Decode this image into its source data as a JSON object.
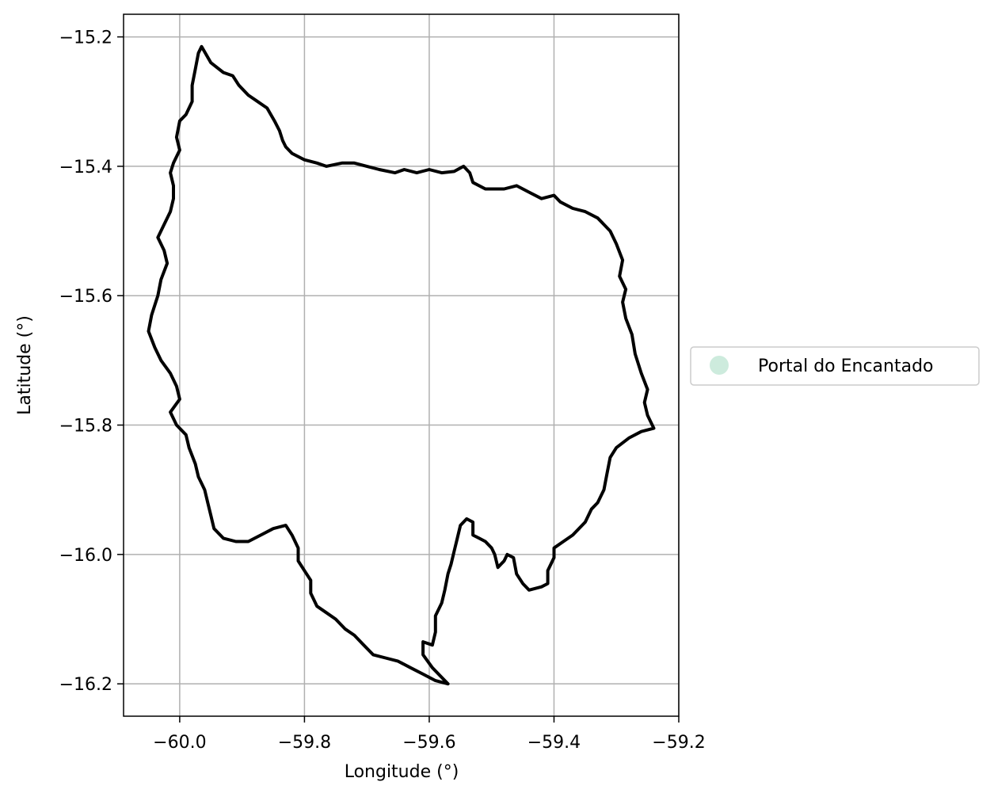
{
  "chart_data": {
    "type": "map",
    "xlabel": "Longitude (°)",
    "ylabel": "Latitude (°)",
    "xlim": [
      -60.09,
      -59.2
    ],
    "ylim": [
      -16.25,
      -15.165
    ],
    "xticks": [
      -60.0,
      -59.8,
      -59.6,
      -59.4,
      -59.2
    ],
    "xtick_labels": [
      "−60.0",
      "−59.8",
      "−59.6",
      "−59.4",
      "−59.2"
    ],
    "yticks": [
      -15.2,
      -15.4,
      -15.6,
      -15.8,
      -16.0,
      -16.2
    ],
    "ytick_labels": [
      "−15.2",
      "−15.4",
      "−15.6",
      "−15.8",
      "−16.0",
      "−16.2"
    ],
    "grid": true,
    "legend": {
      "placement": "outside-right",
      "entries": [
        {
          "label": "Portal do Encantado",
          "color": "#cdebdd"
        }
      ]
    },
    "boundary_color": "#000000",
    "boundary": [
      [
        -59.965,
        -15.215
      ],
      [
        -59.95,
        -15.24
      ],
      [
        -59.93,
        -15.255
      ],
      [
        -59.915,
        -15.26
      ],
      [
        -59.905,
        -15.275
      ],
      [
        -59.89,
        -15.29
      ],
      [
        -59.875,
        -15.3
      ],
      [
        -59.86,
        -15.31
      ],
      [
        -59.848,
        -15.33
      ],
      [
        -59.84,
        -15.345
      ],
      [
        -59.835,
        -15.36
      ],
      [
        -59.83,
        -15.37
      ],
      [
        -59.82,
        -15.38
      ],
      [
        -59.8,
        -15.39
      ],
      [
        -59.78,
        -15.395
      ],
      [
        -59.765,
        -15.4
      ],
      [
        -59.74,
        -15.395
      ],
      [
        -59.72,
        -15.395
      ],
      [
        -59.7,
        -15.4
      ],
      [
        -59.68,
        -15.405
      ],
      [
        -59.655,
        -15.41
      ],
      [
        -59.64,
        -15.405
      ],
      [
        -59.62,
        -15.41
      ],
      [
        -59.6,
        -15.405
      ],
      [
        -59.58,
        -15.41
      ],
      [
        -59.56,
        -15.408
      ],
      [
        -59.545,
        -15.4
      ],
      [
        -59.535,
        -15.41
      ],
      [
        -59.53,
        -15.425
      ],
      [
        -59.51,
        -15.435
      ],
      [
        -59.48,
        -15.435
      ],
      [
        -59.46,
        -15.43
      ],
      [
        -59.44,
        -15.44
      ],
      [
        -59.42,
        -15.45
      ],
      [
        -59.4,
        -15.445
      ],
      [
        -59.39,
        -15.455
      ],
      [
        -59.37,
        -15.465
      ],
      [
        -59.35,
        -15.47
      ],
      [
        -59.33,
        -15.48
      ],
      [
        -59.31,
        -15.5
      ],
      [
        -59.3,
        -15.52
      ],
      [
        -59.29,
        -15.545
      ],
      [
        -59.295,
        -15.57
      ],
      [
        -59.285,
        -15.59
      ],
      [
        -59.29,
        -15.61
      ],
      [
        -59.285,
        -15.635
      ],
      [
        -59.275,
        -15.66
      ],
      [
        -59.27,
        -15.69
      ],
      [
        -59.26,
        -15.72
      ],
      [
        -59.25,
        -15.745
      ],
      [
        -59.255,
        -15.765
      ],
      [
        -59.25,
        -15.785
      ],
      [
        -59.24,
        -15.805
      ],
      [
        -59.26,
        -15.81
      ],
      [
        -59.28,
        -15.82
      ],
      [
        -59.3,
        -15.835
      ],
      [
        -59.31,
        -15.85
      ],
      [
        -59.315,
        -15.875
      ],
      [
        -59.32,
        -15.9
      ],
      [
        -59.33,
        -15.92
      ],
      [
        -59.34,
        -15.93
      ],
      [
        -59.35,
        -15.95
      ],
      [
        -59.37,
        -15.97
      ],
      [
        -59.385,
        -15.98
      ],
      [
        -59.4,
        -15.99
      ],
      [
        -59.4,
        -16.005
      ],
      [
        -59.41,
        -16.025
      ],
      [
        -59.41,
        -16.045
      ],
      [
        -59.42,
        -16.05
      ],
      [
        -59.44,
        -16.055
      ],
      [
        -59.45,
        -16.045
      ],
      [
        -59.46,
        -16.03
      ],
      [
        -59.465,
        -16.005
      ],
      [
        -59.475,
        -16.0
      ],
      [
        -59.48,
        -16.01
      ],
      [
        -59.49,
        -16.02
      ],
      [
        -59.495,
        -16.0
      ],
      [
        -59.5,
        -15.99
      ],
      [
        -59.51,
        -15.98
      ],
      [
        -59.52,
        -15.975
      ],
      [
        -59.53,
        -15.97
      ],
      [
        -59.53,
        -15.95
      ],
      [
        -59.54,
        -15.945
      ],
      [
        -59.55,
        -15.955
      ],
      [
        -59.555,
        -15.975
      ],
      [
        -59.56,
        -15.995
      ],
      [
        -59.565,
        -16.015
      ],
      [
        -59.57,
        -16.03
      ],
      [
        -59.575,
        -16.055
      ],
      [
        -59.58,
        -16.075
      ],
      [
        -59.59,
        -16.095
      ],
      [
        -59.59,
        -16.12
      ],
      [
        -59.595,
        -16.14
      ],
      [
        -59.61,
        -16.135
      ],
      [
        -59.61,
        -16.155
      ],
      [
        -59.595,
        -16.175
      ],
      [
        -59.58,
        -16.19
      ],
      [
        -59.57,
        -16.2
      ],
      [
        -59.59,
        -16.195
      ],
      [
        -59.61,
        -16.185
      ],
      [
        -59.63,
        -16.175
      ],
      [
        -59.65,
        -16.165
      ],
      [
        -59.67,
        -16.16
      ],
      [
        -59.69,
        -16.155
      ],
      [
        -59.705,
        -16.14
      ],
      [
        -59.72,
        -16.125
      ],
      [
        -59.735,
        -16.115
      ],
      [
        -59.75,
        -16.1
      ],
      [
        -59.765,
        -16.09
      ],
      [
        -59.78,
        -16.08
      ],
      [
        -59.79,
        -16.06
      ],
      [
        -59.79,
        -16.04
      ],
      [
        -59.8,
        -16.025
      ],
      [
        -59.81,
        -16.01
      ],
      [
        -59.81,
        -15.99
      ],
      [
        -59.82,
        -15.97
      ],
      [
        -59.83,
        -15.955
      ],
      [
        -59.85,
        -15.96
      ],
      [
        -59.87,
        -15.97
      ],
      [
        -59.89,
        -15.98
      ],
      [
        -59.91,
        -15.98
      ],
      [
        -59.93,
        -15.975
      ],
      [
        -59.945,
        -15.96
      ],
      [
        -59.95,
        -15.94
      ],
      [
        -59.955,
        -15.92
      ],
      [
        -59.96,
        -15.9
      ],
      [
        -59.97,
        -15.88
      ],
      [
        -59.975,
        -15.86
      ],
      [
        -59.985,
        -15.835
      ],
      [
        -59.99,
        -15.815
      ],
      [
        -60.005,
        -15.8
      ],
      [
        -60.015,
        -15.78
      ],
      [
        -60.0,
        -15.76
      ],
      [
        -60.005,
        -15.74
      ],
      [
        -60.015,
        -15.72
      ],
      [
        -60.03,
        -15.7
      ],
      [
        -60.04,
        -15.68
      ],
      [
        -60.05,
        -15.655
      ],
      [
        -60.045,
        -15.63
      ],
      [
        -60.035,
        -15.6
      ],
      [
        -60.03,
        -15.575
      ],
      [
        -60.02,
        -15.55
      ],
      [
        -60.025,
        -15.53
      ],
      [
        -60.035,
        -15.51
      ],
      [
        -60.025,
        -15.49
      ],
      [
        -60.015,
        -15.47
      ],
      [
        -60.01,
        -15.45
      ],
      [
        -60.01,
        -15.43
      ],
      [
        -60.015,
        -15.41
      ],
      [
        -60.01,
        -15.395
      ],
      [
        -60.0,
        -15.375
      ],
      [
        -60.005,
        -15.355
      ],
      [
        -60.0,
        -15.33
      ],
      [
        -59.99,
        -15.32
      ],
      [
        -59.98,
        -15.3
      ],
      [
        -59.98,
        -15.275
      ],
      [
        -59.975,
        -15.25
      ],
      [
        -59.97,
        -15.225
      ],
      [
        -59.965,
        -15.215
      ]
    ]
  }
}
